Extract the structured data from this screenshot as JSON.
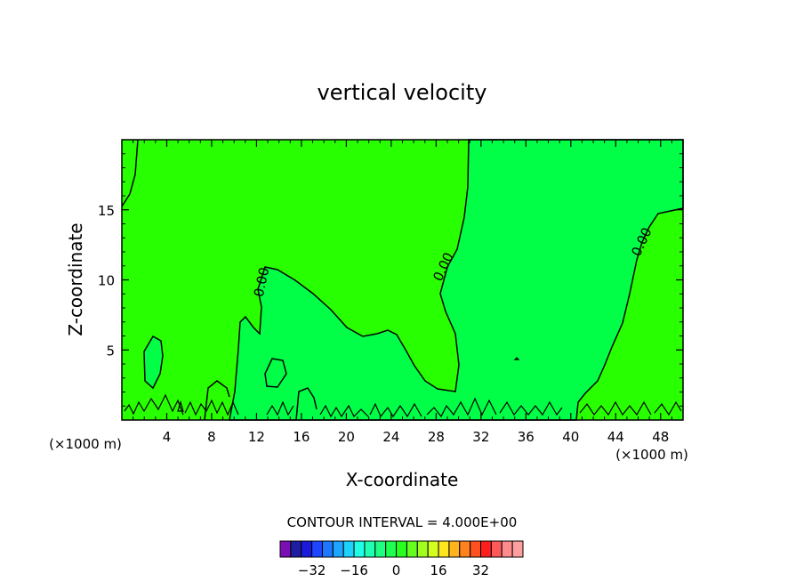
{
  "chart_data": {
    "type": "contour",
    "title": "vertical velocity",
    "xlabel": "X-coordinate",
    "ylabel": "Z-coordinate",
    "x_unit": "(×1000 m)",
    "xlim": [
      0,
      50
    ],
    "ylim": [
      0,
      20
    ],
    "x_ticks": [
      4,
      8,
      12,
      16,
      20,
      24,
      28,
      32,
      36,
      40,
      44,
      48
    ],
    "y_ticks": [
      5,
      10,
      15
    ],
    "contour_levels_labeled": [
      "0.00",
      "0.00",
      "0.00"
    ],
    "contour_interval_text": "CONTOUR INTERVAL = 4.000E+00",
    "colorbar": {
      "tick_labels": [
        "−32",
        "−16",
        "0",
        "16",
        "32"
      ],
      "tick_values": [
        -32,
        -16,
        0,
        16,
        32
      ],
      "colors": [
        "#7a10b4",
        "#1e1ea0",
        "#1a1adc",
        "#1e46ff",
        "#1e78ff",
        "#1ea5ff",
        "#1ed2ff",
        "#1effe6",
        "#1effb4",
        "#1eff82",
        "#1eff50",
        "#28ff1e",
        "#64ff1e",
        "#a0ff1e",
        "#d2ff1e",
        "#ffe61e",
        "#ffb41e",
        "#ff821e",
        "#ff501e",
        "#ff1e1e",
        "#ff5a5a",
        "#ff8c8c",
        "#ffa0a0"
      ]
    },
    "fill_colors": {
      "weak_positive": "#28ff00",
      "weak_negative": "#00ff46"
    },
    "grid": false
  }
}
